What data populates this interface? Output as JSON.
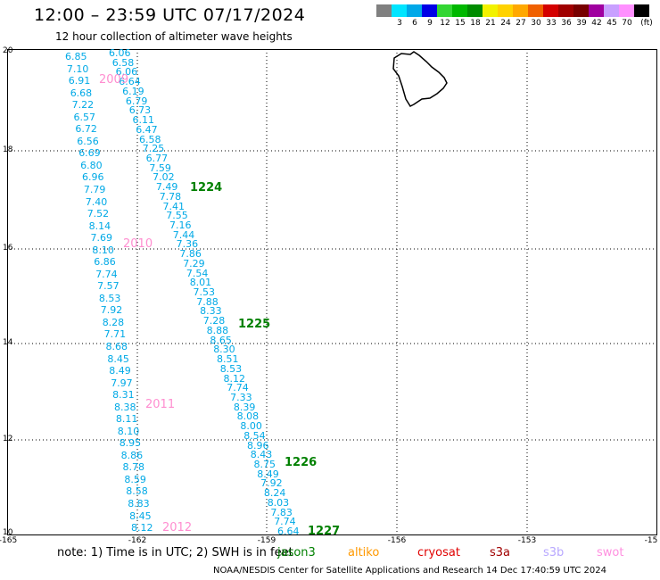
{
  "header": {
    "title": "12:00 – 23:59 UTC 07/17/2024",
    "subtitle": "12 hour collection of altimeter wave heights"
  },
  "colorbar": {
    "unit": "(ft)",
    "labels": [
      "3",
      "6",
      "9",
      "12",
      "15",
      "18",
      "21",
      "24",
      "27",
      "30",
      "33",
      "36",
      "39",
      "42",
      "45",
      "70"
    ],
    "colors": [
      "#808080",
      "#00e5ff",
      "#00a8e8",
      "#0000e6",
      "#33d633",
      "#00b800",
      "#008c00",
      "#f2f200",
      "#ffd200",
      "#ffa800",
      "#f06000",
      "#d40000",
      "#a00000",
      "#780000",
      "#a000a0",
      "#c8a0ff",
      "#ff90ff",
      "#000000"
    ]
  },
  "map": {
    "lat_labels": [
      "20",
      "18",
      "16",
      "14",
      "12",
      "10"
    ],
    "lon_labels": [
      "-165",
      "-162",
      "-159",
      "-156",
      "-153",
      "-15"
    ]
  },
  "tracks": {
    "left": [
      "6.85",
      "7.10",
      "6.91",
      "6.68",
      "7.22",
      "6.57",
      "6.72",
      "6.56",
      "6.69",
      "6.80",
      "6.96",
      "7.79",
      "7.40",
      "7.52",
      "8.14",
      "7.69",
      "8.10",
      "6.86",
      "7.74",
      "7.57",
      "8.53",
      "7.92",
      "8.28",
      "7.71",
      "8.68",
      "8.45",
      "8.49",
      "7.97",
      "8.31",
      "8.38",
      "8.11",
      "8.10",
      "8.95",
      "8.86",
      "8.78",
      "8.59",
      "8.58",
      "8.83",
      "8.45",
      "8.12"
    ],
    "right": [
      "6.06",
      "6.58",
      "6.06",
      "6.64",
      "6.19",
      "6.79",
      "6.73",
      "6.11",
      "6.47",
      "6.58",
      "7.25",
      "6.77",
      "7.59",
      "7.02",
      "7.49",
      "7.78",
      "7.41",
      "7.55",
      "7.16",
      "7.44",
      "7.36",
      "7.86",
      "7.29",
      "7.54",
      "8.01",
      "7.53",
      "7.88",
      "8.33",
      "7.28",
      "8.88",
      "8.65",
      "8.30",
      "8.51",
      "8.53",
      "8.12",
      "7.74",
      "7.33",
      "8.39",
      "8.08",
      "8.00",
      "8.54",
      "8.96",
      "8.43",
      "8.75",
      "8.49",
      "7.92",
      "8.24",
      "8.03",
      "7.83",
      "7.74",
      "6.64"
    ]
  },
  "orbit_labels": [
    "1224",
    "1225",
    "1226",
    "1227"
  ],
  "cycle_labels": [
    "2009",
    "2010",
    "2011",
    "2012"
  ],
  "footer": {
    "note": "note:  1) Time is in UTC; 2) SWH is in feet",
    "satellites": [
      {
        "name": "jason3",
        "color": "#008000"
      },
      {
        "name": "altiko",
        "color": "#ff9900"
      },
      {
        "name": "cryosat",
        "color": "#e00000"
      },
      {
        "name": "s3a",
        "color": "#a00000"
      },
      {
        "name": "s3b",
        "color": "#b8a8ff"
      },
      {
        "name": "swot",
        "color": "#ff90e0"
      }
    ],
    "credit": "NOAA/NESDIS Center for Satellite Applications and Research    14 Dec 17:40:59 UTC 2024"
  }
}
